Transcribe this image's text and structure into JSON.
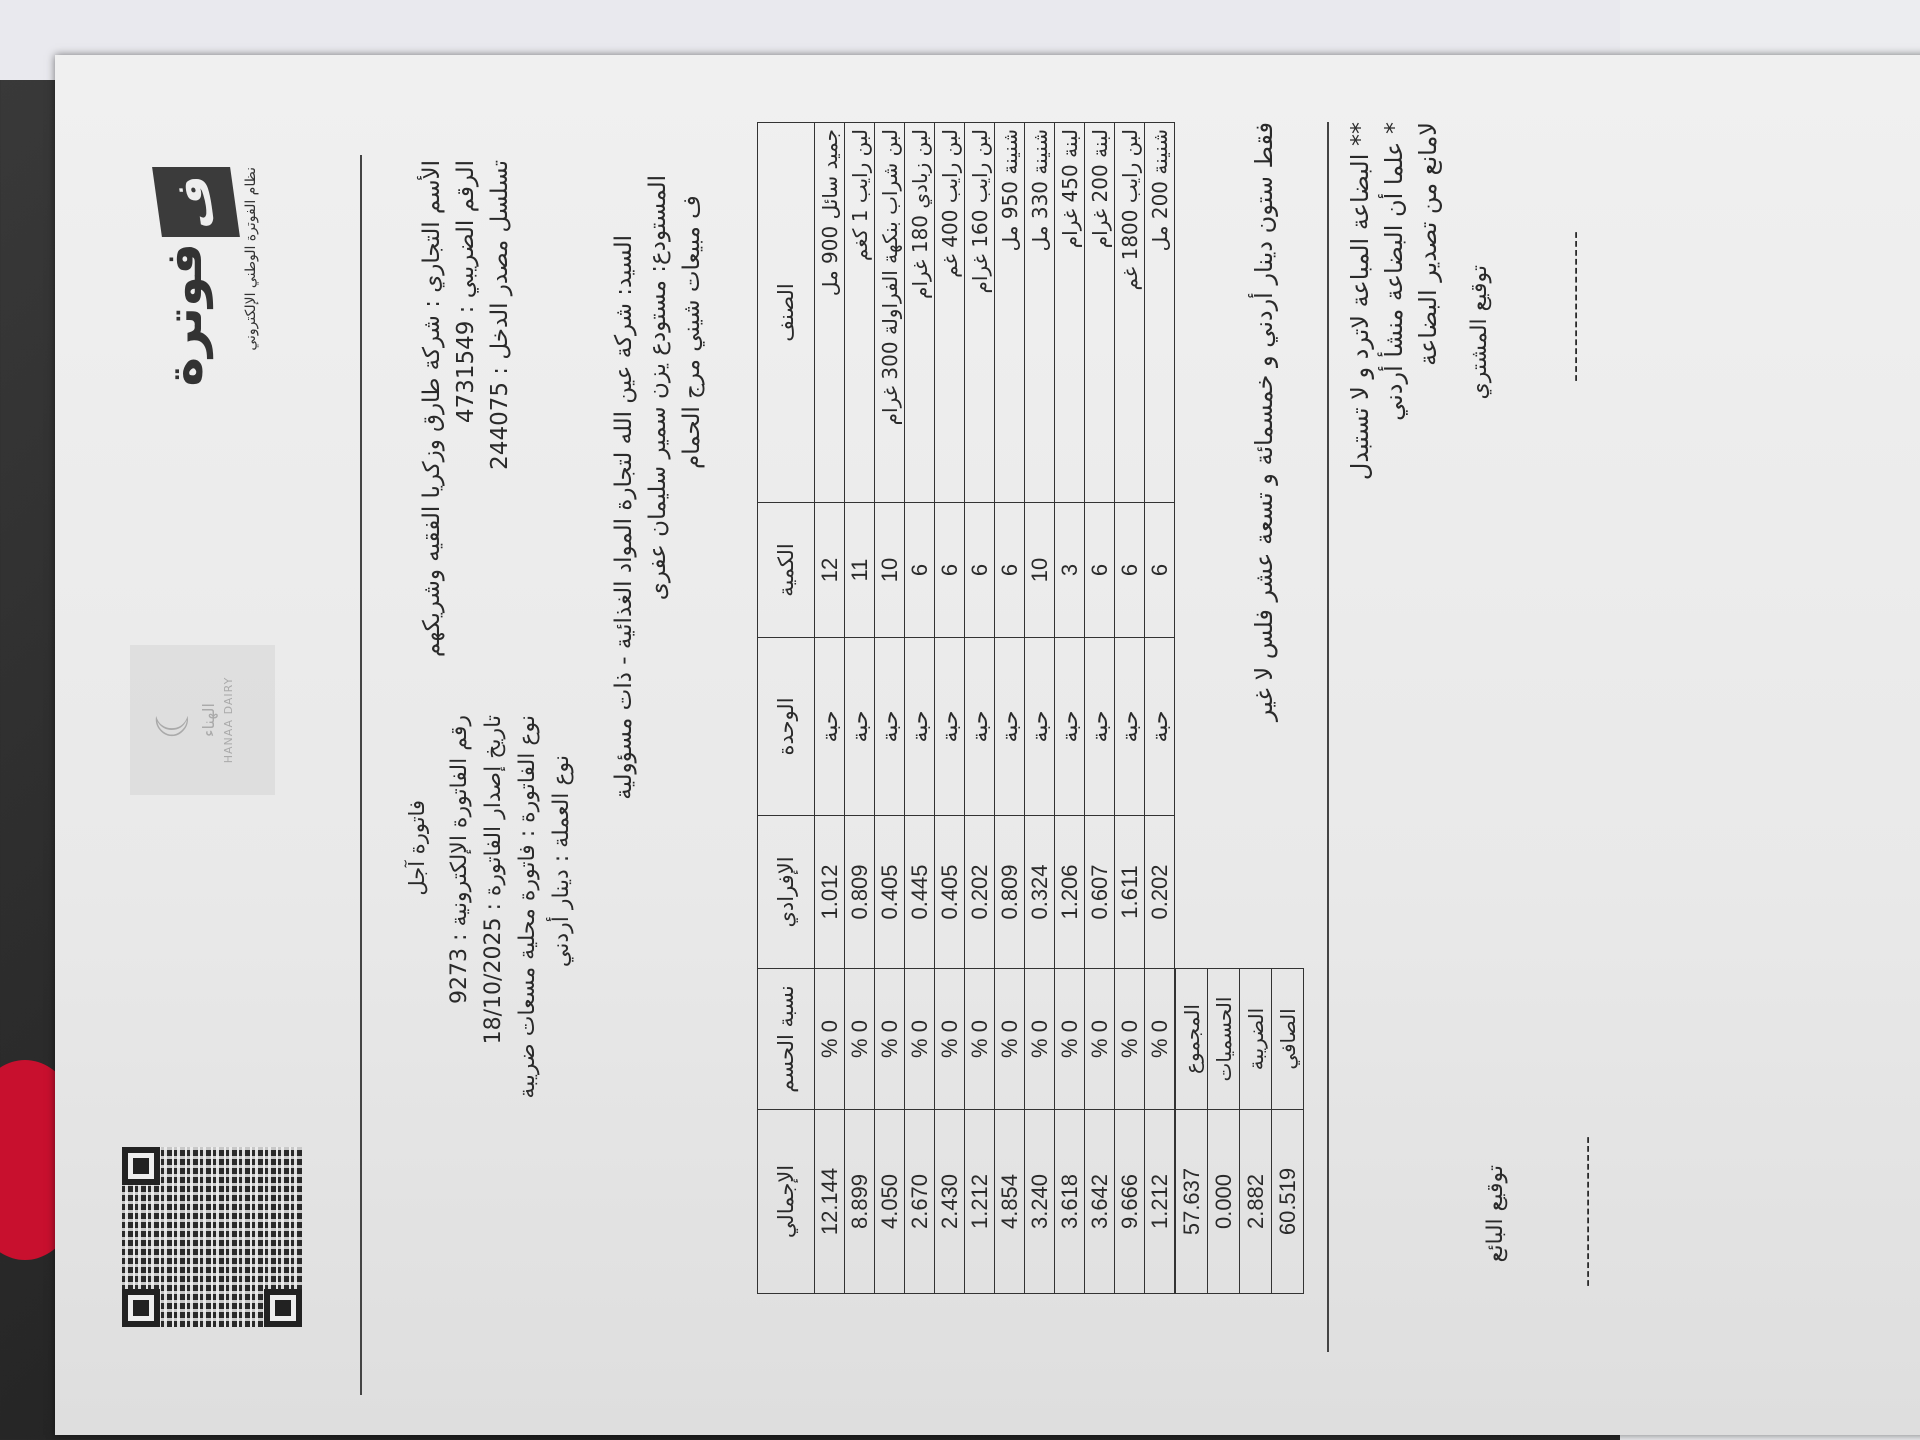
{
  "logo": {
    "mark": "ف",
    "word": "فوترة",
    "subtitle": "نظام الفوترة الوطني الإلكتروني"
  },
  "watermark": {
    "ar": "الهناء",
    "en": "HANAA DAIRY"
  },
  "header": {
    "trade_name": "الأسم التجاري : شركة طارق وزكريا الفقيه وشريكهم",
    "tax_number": "الرقم الضريبي : 4731549",
    "income_source": "تسلسل مصدر الدخل : 244075",
    "title": "فاتورة آجل",
    "invoice_number": "رقم الفاتورة الإلكترونية : 9273",
    "issue_date": "تاريخ إصدار الفاتورة : 18/10/2025",
    "invoice_type": "نوع الفاتورة : فاتورة محلية مسعات ضريبة",
    "currency": "نوع العملة : دينار أردني"
  },
  "buyer": {
    "mr": "السيد: شركة عين الله لتجارة المواد الغذائية - ذات مسؤولية",
    "warehouse": "المستودع: مستودع يزن سمير سليمان عفرى",
    "sales": "ف مبيعات شيني مرج الحمام"
  },
  "table": {
    "headers": [
      "الصنف",
      "الكمية",
      "الوحدة",
      "الإفرادي",
      "نسبة الحسم",
      "الإجمالي"
    ],
    "rows": [
      [
        "جميد سائل 900 مل",
        "12",
        "حبة",
        "1.012",
        "0 %",
        "12.144"
      ],
      [
        "لبن رايب 1 كغم",
        "11",
        "حبة",
        "0.809",
        "0 %",
        "8.899"
      ],
      [
        "لبن شراب بنكهة الفراولة 300 غرام",
        "10",
        "حبة",
        "0.405",
        "0 %",
        "4.050"
      ],
      [
        "لبن زبادي 180 غرام",
        "6",
        "حبة",
        "0.445",
        "0 %",
        "2.670"
      ],
      [
        "لبن رايب 400 غم",
        "6",
        "حبة",
        "0.405",
        "0 %",
        "2.430"
      ],
      [
        "لبن رايب 160 غرام",
        "6",
        "حبة",
        "0.202",
        "0 %",
        "1.212"
      ],
      [
        "شنينة 950 مل",
        "6",
        "حبة",
        "0.809",
        "0 %",
        "4.854"
      ],
      [
        "شنينة 330 مل",
        "10",
        "حبة",
        "0.324",
        "0 %",
        "3.240"
      ],
      [
        "لبنة 450 غرام",
        "3",
        "حبة",
        "1.206",
        "0 %",
        "3.618"
      ],
      [
        "لبنة 200 غرام",
        "6",
        "حبة",
        "0.607",
        "0 %",
        "3.642"
      ],
      [
        "لبن رايب 1800 غم",
        "6",
        "حبة",
        "1.611",
        "0 %",
        "9.666"
      ],
      [
        "شنينة 200 مل",
        "6",
        "حبة",
        "0.202",
        "0 %",
        "1.212"
      ]
    ],
    "totals": [
      {
        "label": "المجموع",
        "value": "57.637"
      },
      {
        "label": "الحسميات",
        "value": "0.000"
      },
      {
        "label": "الضريبة",
        "value": "2.882"
      },
      {
        "label": "الصافي",
        "value": "60.519"
      }
    ]
  },
  "amount_words": "فقط ستون دينار أردني و خمسمائة و تسعة عشر فلس لا غير",
  "notes": [
    "** البضاعة المباعة لاترد و لا تستبدل",
    "* علما أن البضاعة منشأ أردني",
    "لامانع من تصدير البضاعة"
  ],
  "signatures": {
    "buyer": "توقيع المشتري",
    "seller": "توقيع البائع",
    "dashes": "-----------------"
  }
}
